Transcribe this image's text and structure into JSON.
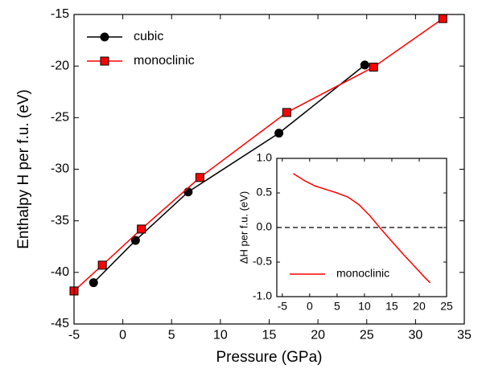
{
  "chart_data": [
    {
      "type": "line",
      "xlabel": "Pressure (GPa)",
      "ylabel": "Enthalpy H per f.u. (eV)",
      "xlim": [
        -5,
        35
      ],
      "xticks": [
        -5,
        0,
        5,
        10,
        15,
        20,
        25,
        30,
        35
      ],
      "ylim": [
        -45,
        -15
      ],
      "yticks": [
        -45,
        -40,
        -35,
        -30,
        -25,
        -20,
        -15
      ],
      "legend": "upper left",
      "series": [
        {
          "name": "cubic",
          "color": "#000000",
          "marker": "circle",
          "x": [
            -3,
            1.3,
            6.7,
            16,
            24.8
          ],
          "values": [
            -41.0,
            -36.9,
            -32.2,
            -26.5,
            -19.9
          ]
        },
        {
          "name": "monoclinic",
          "color": "#ff0000",
          "marker": "square",
          "x": [
            -5,
            -2.1,
            1.9,
            7.9,
            16.8,
            25.7,
            32.8
          ],
          "values": [
            -41.8,
            -39.3,
            -35.8,
            -30.8,
            -24.5,
            -20.1,
            -15.4
          ]
        }
      ]
    },
    {
      "type": "line",
      "ylabel": "ΔH per f.u. (eV)",
      "xlim": [
        -6,
        25
      ],
      "xticks": [
        -5,
        0,
        5,
        10,
        15,
        20,
        25
      ],
      "ylim": [
        -1,
        1
      ],
      "yticks": [
        {
          "value": -1,
          "label": "-1.0"
        },
        -0.5,
        {
          "value": 0,
          "label": "0.0"
        },
        0.5,
        {
          "value": 1,
          "label": "1.0"
        }
      ],
      "hline": 0,
      "legend": "lower left",
      "series": [
        {
          "name": "monoclinic",
          "color": "#ff0000",
          "x": [
            -3,
            -1,
            1,
            3,
            5,
            7,
            9,
            11,
            13,
            15,
            17,
            19,
            21,
            22
          ],
          "values": [
            0.78,
            0.68,
            0.6,
            0.55,
            0.5,
            0.44,
            0.33,
            0.17,
            -0.02,
            -0.2,
            -0.38,
            -0.55,
            -0.72,
            -0.8
          ]
        }
      ]
    }
  ]
}
